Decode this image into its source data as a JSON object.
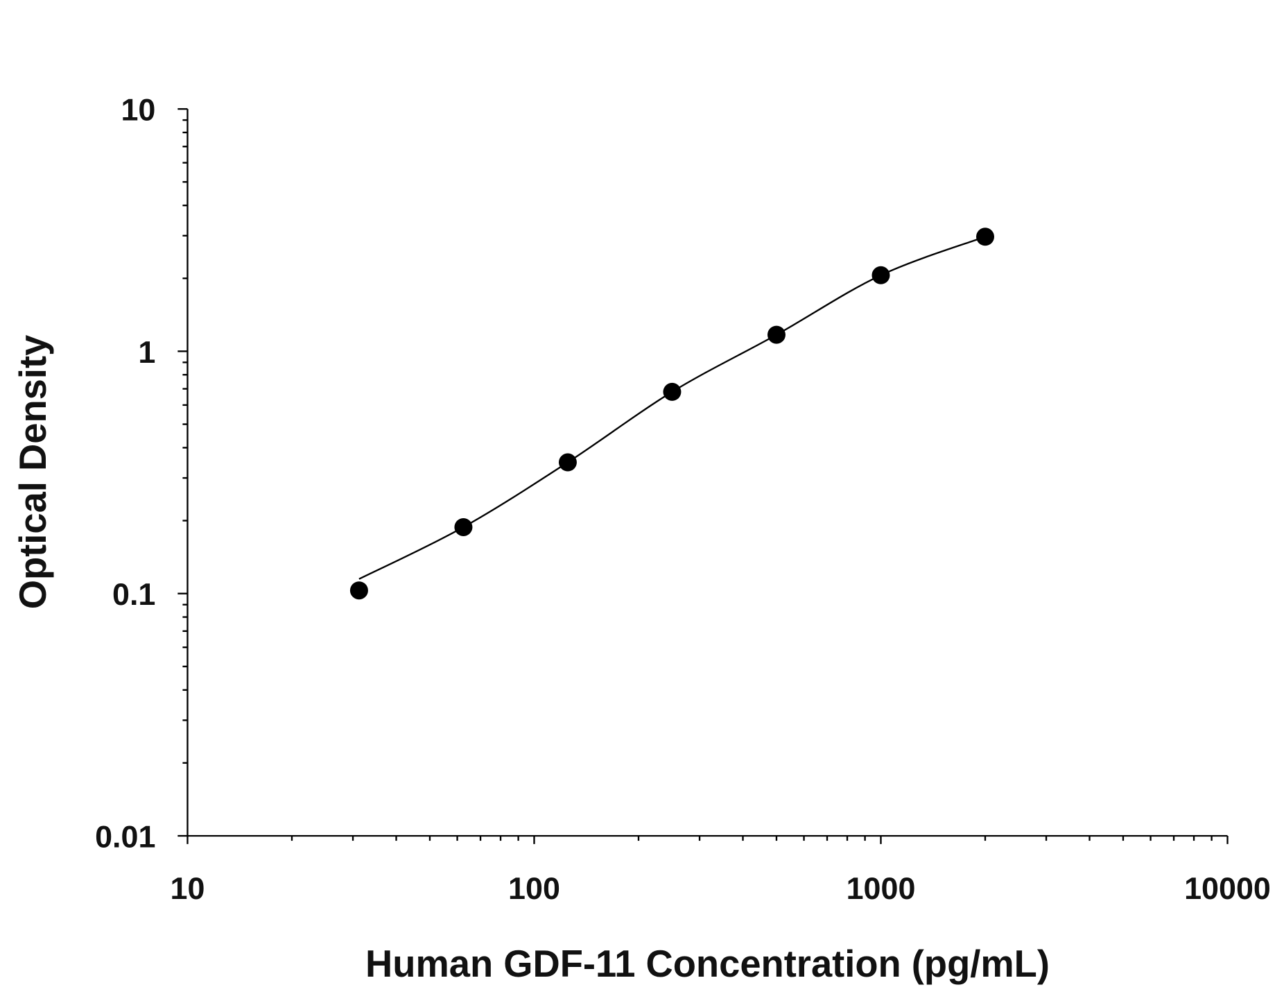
{
  "chart_data": {
    "type": "scatter",
    "title": "",
    "xlabel": "Human GDF-11 Concentration (pg/mL)",
    "ylabel": "Optical Density",
    "x_scale": "log",
    "y_scale": "log",
    "xlim": [
      10,
      10000
    ],
    "ylim": [
      0.01,
      10
    ],
    "x_ticks": [
      "10",
      "100",
      "1000",
      "10000"
    ],
    "y_ticks": [
      "0.01",
      "0.1",
      "1",
      "10"
    ],
    "grid": false,
    "series": [
      {
        "x": [
          31.25,
          62.5,
          125,
          250,
          500,
          1000,
          2000
        ],
        "y": [
          0.103,
          0.188,
          0.348,
          0.68,
          1.17,
          2.06,
          2.97
        ],
        "marker": "filled-circle",
        "fit_line": true
      }
    ],
    "colors": {
      "marks": "#000000",
      "axes": "#000000"
    }
  }
}
